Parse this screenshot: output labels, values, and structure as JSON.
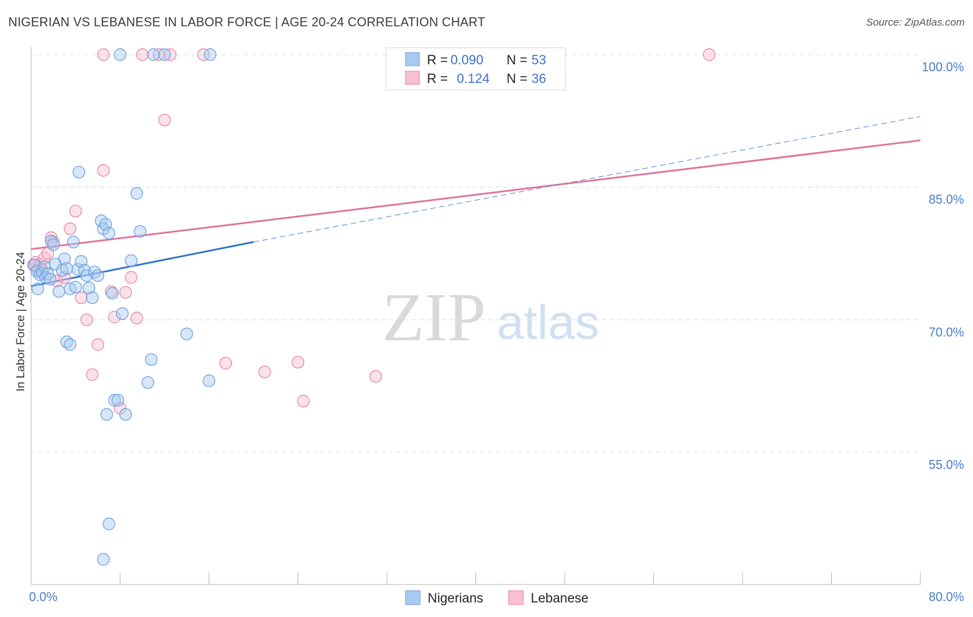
{
  "chart_data": {
    "type": "scatter",
    "title": "NIGERIAN VS LEBANESE IN LABOR FORCE | AGE 20-24 CORRELATION CHART",
    "source": "Source: ZipAtlas.com",
    "xlabel": "",
    "ylabel": "In Labor Force | Age 20-24",
    "xlim": [
      0,
      80
    ],
    "ylim": [
      41,
      102
    ],
    "x_tick_labels": [
      {
        "value": 0,
        "label": "0.0%"
      },
      {
        "value": 80,
        "label": "80.0%"
      }
    ],
    "y_tick_labels": [
      {
        "value": 100,
        "label": "100.0%"
      },
      {
        "value": 85,
        "label": "85.0%"
      },
      {
        "value": 70,
        "label": "70.0%"
      },
      {
        "value": 55,
        "label": "55.0%"
      }
    ],
    "legend": [
      {
        "r_label": "R =",
        "r_value": "0.090",
        "n_label": "N =",
        "n_value": "53"
      },
      {
        "r_label": "R =",
        "r_value": "0.124",
        "n_label": "N =",
        "n_value": "36"
      }
    ],
    "series": [
      {
        "name": "Nigerians",
        "color": "#6fa3e0",
        "fill": "#a9c9f0",
        "trend": {
          "x0": 0,
          "y0": 73.8,
          "x1": 20,
          "y1": 78.8
        },
        "trend_ext": {
          "x0": 20,
          "y0": 78.8,
          "x1": 80,
          "y1": 93.0
        },
        "points": [
          [
            0.3,
            76.2
          ],
          [
            0.5,
            75.5
          ],
          [
            0.6,
            73.5
          ],
          [
            0.8,
            75.1
          ],
          [
            1.0,
            75.3
          ],
          [
            1.2,
            76.0
          ],
          [
            1.3,
            74.8
          ],
          [
            1.5,
            75.2
          ],
          [
            1.7,
            74.6
          ],
          [
            1.8,
            78.9
          ],
          [
            2.0,
            78.5
          ],
          [
            2.2,
            76.3
          ],
          [
            2.5,
            73.2
          ],
          [
            2.8,
            75.6
          ],
          [
            3.0,
            76.9
          ],
          [
            3.2,
            75.8
          ],
          [
            3.5,
            73.5
          ],
          [
            3.8,
            78.8
          ],
          [
            4.0,
            73.7
          ],
          [
            4.2,
            75.7
          ],
          [
            4.5,
            76.6
          ],
          [
            4.8,
            75.6
          ],
          [
            5.0,
            75.0
          ],
          [
            5.2,
            73.6
          ],
          [
            5.5,
            72.5
          ],
          [
            5.7,
            75.4
          ],
          [
            6.0,
            75.0
          ],
          [
            6.3,
            81.2
          ],
          [
            6.5,
            80.3
          ],
          [
            6.7,
            80.8
          ],
          [
            7.0,
            79.8
          ],
          [
            7.3,
            73.0
          ],
          [
            7.5,
            60.9
          ],
          [
            7.8,
            60.9
          ],
          [
            8.2,
            70.7
          ],
          [
            8.5,
            59.3
          ],
          [
            9.0,
            76.7
          ],
          [
            9.5,
            84.3
          ],
          [
            9.8,
            80.0
          ],
          [
            10.5,
            62.9
          ],
          [
            10.8,
            65.5
          ],
          [
            12.0,
            100.0
          ],
          [
            14.0,
            68.4
          ],
          [
            16.0,
            63.1
          ],
          [
            6.8,
            59.3
          ],
          [
            7.0,
            46.9
          ],
          [
            6.5,
            42.9
          ],
          [
            3.2,
            67.5
          ],
          [
            3.5,
            67.2
          ],
          [
            4.3,
            86.7
          ],
          [
            8.0,
            100.0
          ],
          [
            11.0,
            100.0
          ],
          [
            16.1,
            100.0
          ]
        ]
      },
      {
        "name": "Lebanese",
        "color": "#e889a8",
        "fill": "#f7bfd0",
        "trend": {
          "x0": 0,
          "y0": 78.0,
          "x1": 80,
          "y1": 90.3
        },
        "points": [
          [
            0.2,
            76.2
          ],
          [
            0.4,
            76.5
          ],
          [
            0.6,
            75.7
          ],
          [
            0.8,
            76.3
          ],
          [
            1.0,
            75.6
          ],
          [
            1.2,
            77.0
          ],
          [
            1.5,
            77.5
          ],
          [
            1.8,
            79.3
          ],
          [
            2.0,
            78.8
          ],
          [
            2.3,
            74.4
          ],
          [
            3.0,
            74.8
          ],
          [
            3.5,
            80.3
          ],
          [
            4.0,
            82.3
          ],
          [
            4.5,
            72.5
          ],
          [
            5.0,
            70.0
          ],
          [
            5.5,
            63.8
          ],
          [
            6.0,
            67.2
          ],
          [
            6.5,
            86.9
          ],
          [
            7.2,
            73.2
          ],
          [
            7.5,
            70.3
          ],
          [
            8.0,
            60.0
          ],
          [
            8.5,
            73.1
          ],
          [
            9.0,
            74.8
          ],
          [
            9.5,
            70.2
          ],
          [
            12.0,
            92.6
          ],
          [
            17.5,
            65.1
          ],
          [
            21.0,
            64.1
          ],
          [
            24.0,
            65.2
          ],
          [
            24.5,
            60.8
          ],
          [
            31.0,
            63.6
          ],
          [
            6.5,
            100.0
          ],
          [
            10.0,
            100.0
          ],
          [
            11.5,
            100.0
          ],
          [
            12.5,
            100.0
          ],
          [
            15.5,
            100.0
          ],
          [
            61.0,
            100.0
          ]
        ]
      }
    ]
  }
}
